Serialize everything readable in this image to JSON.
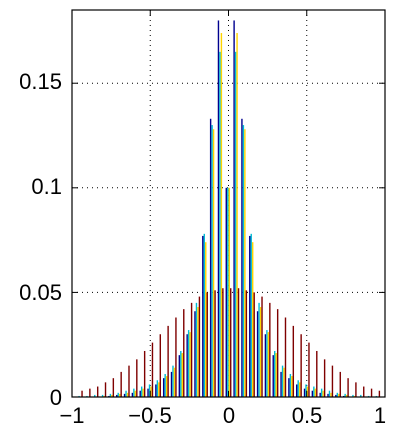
{
  "chart_data": {
    "type": "bar",
    "title": "",
    "xlabel": "",
    "ylabel": "",
    "xlim": [
      -1,
      1
    ],
    "ylim": [
      0,
      0.185
    ],
    "grid": true,
    "legend": "none",
    "x_ticks": [
      -1,
      -0.5,
      0,
      0.5,
      1
    ],
    "x_tick_labels": [
      "−1",
      "−0.5",
      "0",
      "0.5",
      "1"
    ],
    "y_ticks": [
      0,
      0.05,
      0.1,
      0.15
    ],
    "y_tick_labels": [
      "0",
      "0.05",
      "0.1",
      "0.15"
    ],
    "x": [
      -0.95,
      -0.9,
      -0.85,
      -0.8,
      -0.75,
      -0.7,
      -0.65,
      -0.6,
      -0.55,
      -0.5,
      -0.45,
      -0.4,
      -0.35,
      -0.3,
      -0.25,
      -0.2,
      -0.15,
      -0.1,
      -0.05,
      0,
      0.05,
      0.1,
      0.15,
      0.2,
      0.25,
      0.3,
      0.35,
      0.4,
      0.45,
      0.5,
      0.55,
      0.6,
      0.65,
      0.7,
      0.75,
      0.8,
      0.85,
      0.9,
      0.95
    ],
    "series": [
      {
        "color": "#00008f",
        "values": [
          0,
          0,
          0,
          0,
          0.0005,
          0.001,
          0.0015,
          0.002,
          0.003,
          0.004,
          0.006,
          0.009,
          0.012,
          0.02,
          0.03,
          0.041,
          0.077,
          0.133,
          0.18,
          0.1,
          0.18,
          0.133,
          0.077,
          0.041,
          0.03,
          0.02,
          0.012,
          0.009,
          0.006,
          0.004,
          0.003,
          0.002,
          0.0015,
          0.001,
          0.0005,
          0,
          0,
          0,
          0
        ]
      },
      {
        "color": "#00bcd4",
        "values": [
          0.0005,
          0.0005,
          0.001,
          0.001,
          0.0015,
          0.002,
          0.003,
          0.004,
          0.005,
          0.006,
          0.008,
          0.011,
          0.015,
          0.022,
          0.032,
          0.045,
          0.078,
          0.13,
          0.165,
          0.1,
          0.165,
          0.13,
          0.078,
          0.045,
          0.032,
          0.022,
          0.015,
          0.011,
          0.008,
          0.006,
          0.005,
          0.004,
          0.003,
          0.002,
          0.0015,
          0.001,
          0.001,
          0.0005,
          0.0005
        ]
      },
      {
        "color": "#ffd400",
        "values": [
          0,
          0,
          0,
          0.0005,
          0.001,
          0.0015,
          0.002,
          0.003,
          0.004,
          0.005,
          0.007,
          0.01,
          0.014,
          0.021,
          0.031,
          0.043,
          0.074,
          0.128,
          0.174,
          0.1,
          0.174,
          0.128,
          0.074,
          0.043,
          0.031,
          0.021,
          0.014,
          0.01,
          0.007,
          0.005,
          0.004,
          0.003,
          0.002,
          0.0015,
          0.001,
          0.0005,
          0,
          0,
          0
        ]
      },
      {
        "color": "#7f0000",
        "values": [
          0.003,
          0.004,
          0.005,
          0.007,
          0.009,
          0.012,
          0.015,
          0.018,
          0.022,
          0.026,
          0.03,
          0.034,
          0.038,
          0.042,
          0.045,
          0.048,
          0.05,
          0.051,
          0.052,
          0.052,
          0.052,
          0.051,
          0.05,
          0.048,
          0.045,
          0.042,
          0.038,
          0.034,
          0.03,
          0.026,
          0.022,
          0.018,
          0.015,
          0.012,
          0.009,
          0.007,
          0.005,
          0.004,
          0.003
        ]
      }
    ]
  }
}
